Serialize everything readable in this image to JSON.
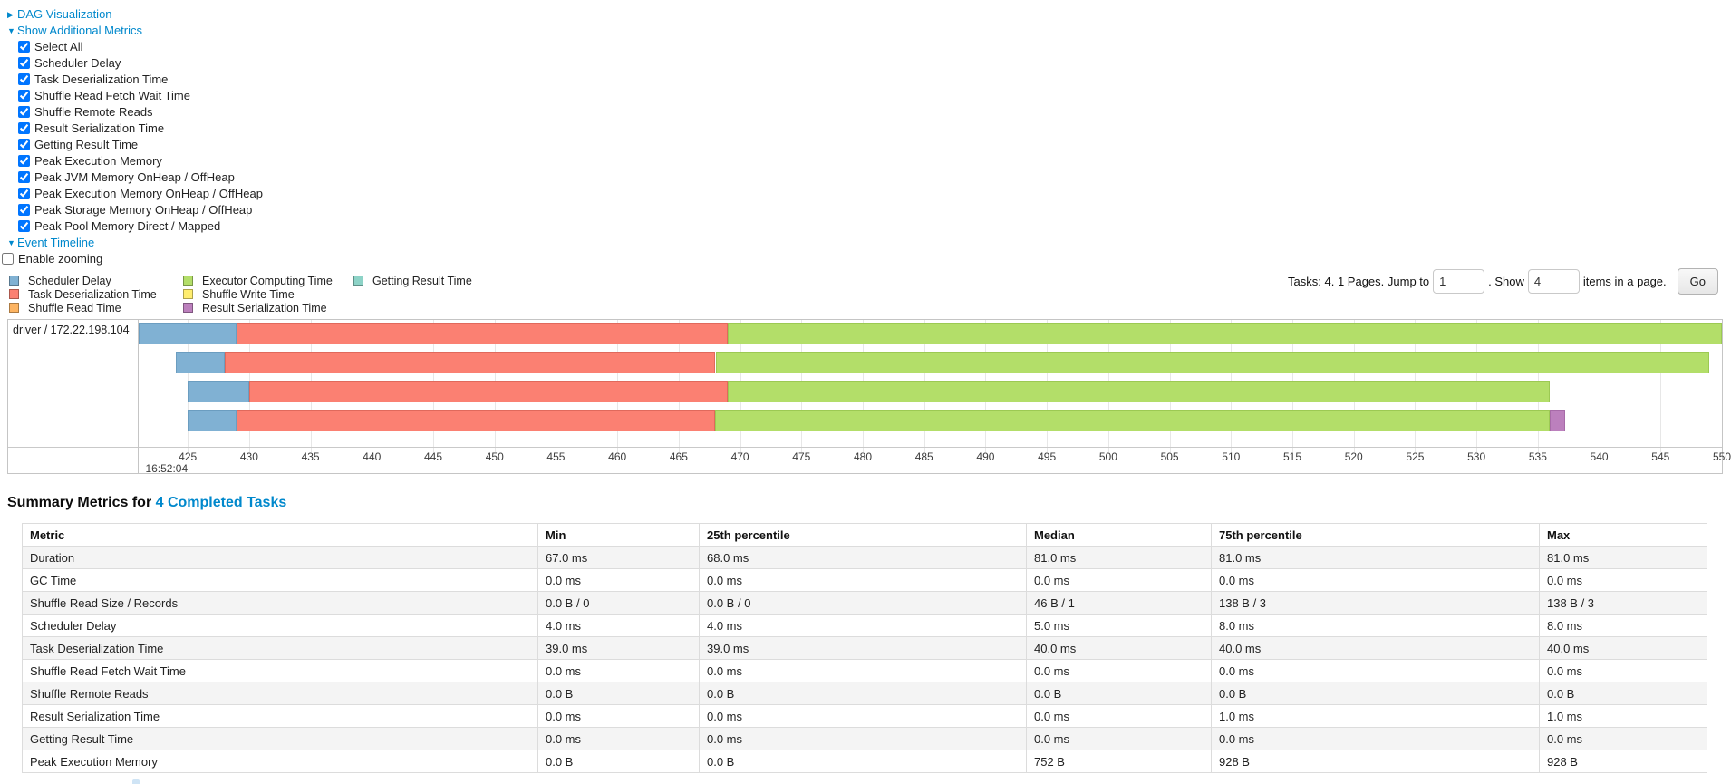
{
  "sections": {
    "dag": {
      "label": "DAG Visualization",
      "expanded": false
    },
    "additional_metrics": {
      "label": "Show Additional Metrics",
      "expanded": true
    },
    "event_timeline": {
      "label": "Event Timeline",
      "expanded": true
    }
  },
  "metrics": {
    "items": [
      {
        "label": "Select All",
        "checked": true
      },
      {
        "label": "Scheduler Delay",
        "checked": true
      },
      {
        "label": "Task Deserialization Time",
        "checked": true
      },
      {
        "label": "Shuffle Read Fetch Wait Time",
        "checked": true
      },
      {
        "label": "Shuffle Remote Reads",
        "checked": true
      },
      {
        "label": "Result Serialization Time",
        "checked": true
      },
      {
        "label": "Getting Result Time",
        "checked": true
      },
      {
        "label": "Peak Execution Memory",
        "checked": true
      },
      {
        "label": "Peak JVM Memory OnHeap / OffHeap",
        "checked": true
      },
      {
        "label": "Peak Execution Memory OnHeap / OffHeap",
        "checked": true
      },
      {
        "label": "Peak Storage Memory OnHeap / OffHeap",
        "checked": true
      },
      {
        "label": "Peak Pool Memory Direct / Mapped",
        "checked": true
      }
    ]
  },
  "enable_zooming": {
    "label": "Enable zooming",
    "checked": false
  },
  "legend": {
    "items": [
      {
        "label": "Scheduler Delay",
        "key": "scheduler_delay"
      },
      {
        "label": "Task Deserialization Time",
        "key": "task_deserialization"
      },
      {
        "label": "Shuffle Read Time",
        "key": "shuffle_read"
      },
      {
        "label": "Executor Computing Time",
        "key": "executor_computing"
      },
      {
        "label": "Shuffle Write Time",
        "key": "shuffle_write"
      },
      {
        "label": "Result Serialization Time",
        "key": "result_serialization"
      },
      {
        "label": "Getting Result Time",
        "key": "getting_result"
      }
    ]
  },
  "pager": {
    "summary": "Tasks: 4. 1 Pages. Jump to",
    "jump_value": "1",
    "mid": ". Show",
    "show_value": "4",
    "suffix": "items in a page.",
    "go": "Go"
  },
  "chart_data": {
    "type": "timeline",
    "group_label": "driver / 172.22.198.104",
    "time_axis": {
      "start_time_label": "16:52:04",
      "unit": "ms",
      "domain": [
        421,
        550
      ],
      "ticks": [
        425,
        430,
        435,
        440,
        445,
        450,
        455,
        460,
        465,
        470,
        475,
        480,
        485,
        490,
        495,
        500,
        505,
        510,
        515,
        520,
        525,
        530,
        535,
        540,
        545,
        550
      ]
    },
    "colors": {
      "scheduler_delay": "#80B1D3",
      "task_deserialization": "#FB8072",
      "shuffle_read": "#FDB462",
      "executor_computing": "#B3DE69",
      "shuffle_write": "#FFED6F",
      "result_serialization": "#BC80BD",
      "getting_result": "#8DD3C7"
    },
    "tasks": [
      {
        "segments": [
          {
            "type": "scheduler_delay",
            "start": 421,
            "end": 429
          },
          {
            "type": "task_deserialization",
            "start": 429,
            "end": 469
          },
          {
            "type": "executor_computing",
            "start": 469,
            "end": 550
          }
        ]
      },
      {
        "segments": [
          {
            "type": "scheduler_delay",
            "start": 424,
            "end": 428
          },
          {
            "type": "task_deserialization",
            "start": 428,
            "end": 468
          },
          {
            "type": "executor_computing",
            "start": 468,
            "end": 549
          }
        ]
      },
      {
        "segments": [
          {
            "type": "scheduler_delay",
            "start": 425,
            "end": 430
          },
          {
            "type": "task_deserialization",
            "start": 430,
            "end": 469
          },
          {
            "type": "executor_computing",
            "start": 469,
            "end": 536
          }
        ]
      },
      {
        "segments": [
          {
            "type": "scheduler_delay",
            "start": 425,
            "end": 429
          },
          {
            "type": "task_deserialization",
            "start": 429,
            "end": 468
          },
          {
            "type": "executor_computing",
            "start": 468,
            "end": 536
          },
          {
            "type": "result_serialization",
            "start": 536,
            "end": 537.2
          }
        ]
      }
    ]
  },
  "summary_table": {
    "title_prefix": "Summary Metrics for ",
    "title_link": "4 Completed Tasks",
    "columns": [
      "Metric",
      "Min",
      "25th percentile",
      "Median",
      "75th percentile",
      "Max"
    ],
    "rows": [
      [
        "Duration",
        "67.0 ms",
        "68.0 ms",
        "81.0 ms",
        "81.0 ms",
        "81.0 ms"
      ],
      [
        "GC Time",
        "0.0 ms",
        "0.0 ms",
        "0.0 ms",
        "0.0 ms",
        "0.0 ms"
      ],
      [
        "Shuffle Read Size / Records",
        "0.0 B / 0",
        "0.0 B / 0",
        "46 B / 1",
        "138 B / 3",
        "138 B / 3"
      ],
      [
        "Scheduler Delay",
        "4.0 ms",
        "4.0 ms",
        "5.0 ms",
        "8.0 ms",
        "8.0 ms"
      ],
      [
        "Task Deserialization Time",
        "39.0 ms",
        "39.0 ms",
        "40.0 ms",
        "40.0 ms",
        "40.0 ms"
      ],
      [
        "Shuffle Read Fetch Wait Time",
        "0.0 ms",
        "0.0 ms",
        "0.0 ms",
        "0.0 ms",
        "0.0 ms"
      ],
      [
        "Shuffle Remote Reads",
        "0.0 B",
        "0.0 B",
        "0.0 B",
        "0.0 B",
        "0.0 B"
      ],
      [
        "Result Serialization Time",
        "0.0 ms",
        "0.0 ms",
        "0.0 ms",
        "1.0 ms",
        "1.0 ms"
      ],
      [
        "Getting Result Time",
        "0.0 ms",
        "0.0 ms",
        "0.0 ms",
        "0.0 ms",
        "0.0 ms"
      ],
      [
        "Peak Execution Memory",
        "0.0 B",
        "0.0 B",
        "752 B",
        "928 B",
        "928 B"
      ]
    ]
  }
}
